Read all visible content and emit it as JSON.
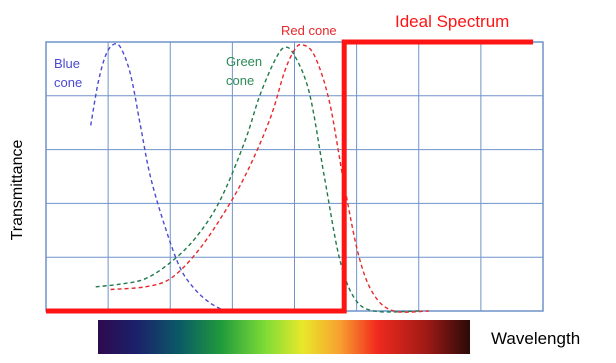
{
  "chart_data": {
    "type": "line",
    "title": "",
    "xlabel": "Wavelength",
    "ylabel": "Transmittance",
    "x_range": [
      0,
      10
    ],
    "y_range": [
      0,
      1
    ],
    "grid": true,
    "grid_divisions": {
      "x": 8,
      "y": 5
    },
    "series": [
      {
        "name": "Blue cone",
        "label_lines": [
          "Blue",
          "cone"
        ],
        "color": "#4a4ad0",
        "style": "dashed",
        "points": [
          [
            0.9,
            0.69
          ],
          [
            1.05,
            0.85
          ],
          [
            1.2,
            0.95
          ],
          [
            1.35,
            0.99
          ],
          [
            1.5,
            0.98
          ],
          [
            1.7,
            0.88
          ],
          [
            1.9,
            0.69
          ],
          [
            2.1,
            0.5
          ],
          [
            2.4,
            0.31
          ],
          [
            2.7,
            0.16
          ],
          [
            3.0,
            0.08
          ],
          [
            3.3,
            0.03
          ],
          [
            3.6,
            0.0
          ]
        ]
      },
      {
        "name": "Green cone",
        "label_lines": [
          "Green",
          "cone"
        ],
        "color": "#1f7a4a",
        "style": "dashed",
        "points": [
          [
            1.0,
            0.09
          ],
          [
            1.5,
            0.1
          ],
          [
            2.0,
            0.12
          ],
          [
            2.5,
            0.18
          ],
          [
            3.0,
            0.27
          ],
          [
            3.5,
            0.41
          ],
          [
            4.0,
            0.63
          ],
          [
            4.3,
            0.8
          ],
          [
            4.6,
            0.93
          ],
          [
            4.8,
            0.98
          ],
          [
            5.0,
            0.95
          ],
          [
            5.3,
            0.81
          ],
          [
            5.6,
            0.5
          ],
          [
            5.9,
            0.2
          ],
          [
            6.2,
            0.05
          ],
          [
            6.6,
            0.0
          ],
          [
            7.5,
            0.0
          ]
        ]
      },
      {
        "name": "Red cone",
        "label_lines": [
          "Red cone"
        ],
        "color": "#e8282c",
        "style": "dashed",
        "points": [
          [
            1.3,
            0.08
          ],
          [
            2.0,
            0.09
          ],
          [
            2.5,
            0.12
          ],
          [
            3.0,
            0.21
          ],
          [
            3.5,
            0.34
          ],
          [
            4.0,
            0.5
          ],
          [
            4.5,
            0.71
          ],
          [
            4.8,
            0.89
          ],
          [
            5.0,
            0.97
          ],
          [
            5.15,
            0.99
          ],
          [
            5.4,
            0.95
          ],
          [
            5.7,
            0.78
          ],
          [
            6.0,
            0.47
          ],
          [
            6.3,
            0.2
          ],
          [
            6.6,
            0.06
          ],
          [
            7.0,
            0.0
          ],
          [
            7.7,
            0.0
          ]
        ]
      },
      {
        "name": "Ideal Spectrum",
        "label_lines": [
          "Ideal Spectrum"
        ],
        "color": "#ff1414",
        "style": "solid",
        "points": [
          [
            0.0,
            0.0
          ],
          [
            6.0,
            0.0
          ],
          [
            6.0,
            1.0
          ],
          [
            9.8,
            1.0
          ]
        ]
      }
    ]
  },
  "spectrum_bar": {
    "stops": [
      [
        "0",
        "#2e0b4e"
      ],
      [
        "0.10",
        "#1b1f6b"
      ],
      [
        "0.22",
        "#0a5a66"
      ],
      [
        "0.33",
        "#1f9a3c"
      ],
      [
        "0.45",
        "#7fdc36"
      ],
      [
        "0.55",
        "#e8e82a"
      ],
      [
        "0.65",
        "#f8a030"
      ],
      [
        "0.75",
        "#f02a1e"
      ],
      [
        "0.88",
        "#a21a16"
      ],
      [
        "1",
        "#2a0a08"
      ]
    ]
  }
}
